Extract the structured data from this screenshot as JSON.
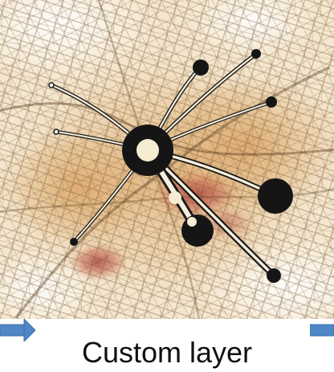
{
  "caption": {
    "text": "Custom layer"
  },
  "icons": {
    "left_arrow": "arrow-right-icon",
    "right_arrow": "arrow-right-icon"
  },
  "colors": {
    "map_background": "#f4e7cf",
    "road_dark": "#7d5b35",
    "heat_orange": "#d7a15c",
    "heat_red": "#b93b3b",
    "hub_black": "#151515",
    "hub_inner": "#f6ecd2",
    "arrow_blue": "#4f86c6"
  }
}
